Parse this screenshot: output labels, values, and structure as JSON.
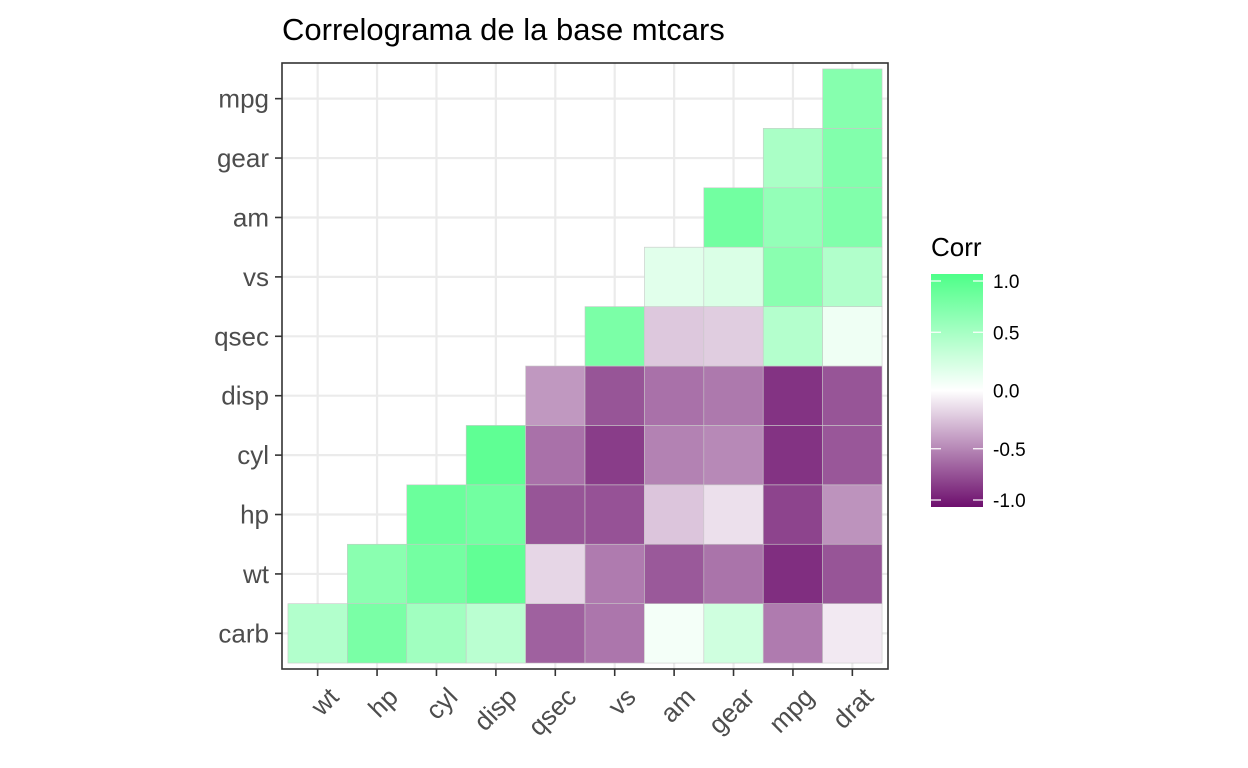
{
  "chart_data": {
    "type": "heatmap",
    "title": "Correlograma de la base mtcars",
    "x_categories": [
      "wt",
      "hp",
      "cyl",
      "disp",
      "qsec",
      "vs",
      "am",
      "gear",
      "mpg",
      "drat"
    ],
    "y_categories": [
      "carb",
      "wt",
      "hp",
      "cyl",
      "disp",
      "qsec",
      "vs",
      "am",
      "gear",
      "mpg"
    ],
    "cells": [
      {
        "x": "wt",
        "y": "carb",
        "value": 0.43
      },
      {
        "x": "hp",
        "y": "carb",
        "value": 0.75
      },
      {
        "x": "cyl",
        "y": "carb",
        "value": 0.53
      },
      {
        "x": "disp",
        "y": "carb",
        "value": 0.39
      },
      {
        "x": "qsec",
        "y": "carb",
        "value": -0.66
      },
      {
        "x": "vs",
        "y": "carb",
        "value": -0.57
      },
      {
        "x": "am",
        "y": "carb",
        "value": 0.06
      },
      {
        "x": "gear",
        "y": "carb",
        "value": 0.27
      },
      {
        "x": "mpg",
        "y": "carb",
        "value": -0.55
      },
      {
        "x": "drat",
        "y": "carb",
        "value": -0.09
      },
      {
        "x": "hp",
        "y": "wt",
        "value": 0.66
      },
      {
        "x": "cyl",
        "y": "wt",
        "value": 0.78
      },
      {
        "x": "disp",
        "y": "wt",
        "value": 0.89
      },
      {
        "x": "qsec",
        "y": "wt",
        "value": -0.17
      },
      {
        "x": "vs",
        "y": "wt",
        "value": -0.55
      },
      {
        "x": "am",
        "y": "wt",
        "value": -0.69
      },
      {
        "x": "gear",
        "y": "wt",
        "value": -0.58
      },
      {
        "x": "mpg",
        "y": "wt",
        "value": -0.87
      },
      {
        "x": "drat",
        "y": "wt",
        "value": -0.71
      },
      {
        "x": "cyl",
        "y": "hp",
        "value": 0.83
      },
      {
        "x": "disp",
        "y": "hp",
        "value": 0.79
      },
      {
        "x": "qsec",
        "y": "hp",
        "value": -0.71
      },
      {
        "x": "vs",
        "y": "hp",
        "value": -0.72
      },
      {
        "x": "am",
        "y": "hp",
        "value": -0.24
      },
      {
        "x": "gear",
        "y": "hp",
        "value": -0.13
      },
      {
        "x": "mpg",
        "y": "hp",
        "value": -0.78
      },
      {
        "x": "drat",
        "y": "hp",
        "value": -0.45
      },
      {
        "x": "disp",
        "y": "cyl",
        "value": 0.9
      },
      {
        "x": "qsec",
        "y": "cyl",
        "value": -0.59
      },
      {
        "x": "vs",
        "y": "cyl",
        "value": -0.81
      },
      {
        "x": "am",
        "y": "cyl",
        "value": -0.52
      },
      {
        "x": "gear",
        "y": "cyl",
        "value": -0.49
      },
      {
        "x": "mpg",
        "y": "cyl",
        "value": -0.85
      },
      {
        "x": "drat",
        "y": "cyl",
        "value": -0.7
      },
      {
        "x": "qsec",
        "y": "disp",
        "value": -0.43
      },
      {
        "x": "vs",
        "y": "disp",
        "value": -0.71
      },
      {
        "x": "am",
        "y": "disp",
        "value": -0.59
      },
      {
        "x": "gear",
        "y": "disp",
        "value": -0.56
      },
      {
        "x": "mpg",
        "y": "disp",
        "value": -0.85
      },
      {
        "x": "drat",
        "y": "disp",
        "value": -0.71
      },
      {
        "x": "vs",
        "y": "qsec",
        "value": 0.74
      },
      {
        "x": "am",
        "y": "qsec",
        "value": -0.23
      },
      {
        "x": "gear",
        "y": "qsec",
        "value": -0.21
      },
      {
        "x": "mpg",
        "y": "qsec",
        "value": 0.42
      },
      {
        "x": "drat",
        "y": "qsec",
        "value": 0.09
      },
      {
        "x": "am",
        "y": "vs",
        "value": 0.17
      },
      {
        "x": "gear",
        "y": "vs",
        "value": 0.21
      },
      {
        "x": "mpg",
        "y": "vs",
        "value": 0.66
      },
      {
        "x": "drat",
        "y": "vs",
        "value": 0.44
      },
      {
        "x": "gear",
        "y": "am",
        "value": 0.79
      },
      {
        "x": "mpg",
        "y": "am",
        "value": 0.6
      },
      {
        "x": "drat",
        "y": "am",
        "value": 0.71
      },
      {
        "x": "mpg",
        "y": "gear",
        "value": 0.48
      },
      {
        "x": "drat",
        "y": "gear",
        "value": 0.7
      },
      {
        "x": "drat",
        "y": "mpg",
        "value": 0.68
      }
    ],
    "legend": {
      "title": "Corr",
      "breaks": [
        1.0,
        0.5,
        0.0,
        -0.5,
        -1.0
      ],
      "labels": [
        "1.0",
        "0.5",
        "0.0",
        "-0.5",
        "-1.0"
      ],
      "range": [
        -1,
        1
      ]
    },
    "colors": {
      "low": "#6D0F6D",
      "mid": "#FFFFFF",
      "high": "#4DFF88"
    }
  }
}
